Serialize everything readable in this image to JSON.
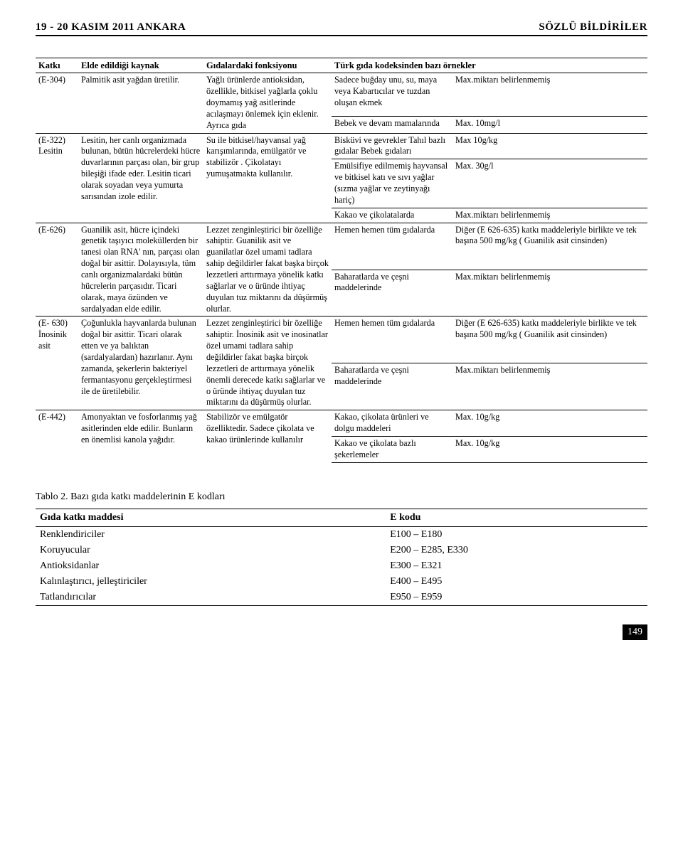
{
  "header": {
    "left": "19 - 20 KASIM 2011 ANKARA",
    "right": "SÖZLÜ BİLDİRİLER"
  },
  "table1": {
    "head": [
      "Katkı",
      "Elde edildiği kaynak",
      "Gıdalardaki fonksiyonu",
      "Türk gıda kodeksinden bazı örnekler",
      ""
    ],
    "rows": {
      "e304": {
        "id": "(E-304)",
        "src": "Palmitik asit yağdan üretilir.",
        "func": "Yağlı ürünlerde antioksidan, özellikle, bitkisel yağlarla çoklu doymamış yağ asitlerinde acılaşmayı önlemek için eklenir. Ayrıca gıda",
        "ex1": "Sadece buğday unu, su, maya veya Kabartıcılar ve tuzdan oluşan ekmek",
        "lim1": "Max.miktarı belirlenmemiş",
        "ex2": "Bebek ve devam mamalarında",
        "lim2": "Max. 10mg/l"
      },
      "e322": {
        "id": "(E-322) Lesitin",
        "src": "Lesitin, her canlı organizmada bulunan, bütün hücrelerdeki hücre duvarlarının parçası olan, bir grup bileşiği ifade eder. Lesitin ticari olarak soyadan veya yumurta sarısından izole edilir.",
        "func": "Su ile bitkisel/hayvansal yağ karışımlarında, emülgatör ve stabilizör . Çikolatayı yumuşatmakta kullanılır.",
        "ex1": "Bisküvi ve gevrekler Tahıl bazlı gıdalar Bebek gıdaları",
        "lim1": "Max 10g/kg",
        "ex2": "Emülsifiye edilmemiş hayvansal ve bitkisel katı ve sıvı yağlar (sızma yağlar ve zeytinyağı hariç)",
        "lim2": "Max. 30g/l",
        "ex3": "Kakao ve çikolatalarda",
        "lim3": "Max.miktarı belirlenmemiş"
      },
      "e626": {
        "id": "(E-626)",
        "src": "Guanilik asit, hücre içindeki genetik taşıyıcı moleküllerden bir tanesi olan RNA' nın, parçası olan doğal bir asittir. Dolayısıyla, tüm canlı organizmalardaki bütün hücrelerin parçasıdır. Ticari olarak, maya özünden ve sardalyadan elde edilir.",
        "func": "Lezzet zenginleştirici bir özelliğe sahiptir. Guanilik asit ve guanilatlar özel umami tadlara sahip değildirler fakat başka birçok lezzetleri arttırmaya yönelik katkı sağlarlar ve o üründe ihtiyaç duyulan tuz miktarını da düşürmüş olurlar.",
        "ex1": "Hemen hemen tüm gıdalarda",
        "lim1": "Diğer (E 626-635) katkı maddeleriyle birlikte ve tek başına 500 mg/kg ( Guanilik asit cinsinden)",
        "ex2": "Baharatlarda ve çeşni maddelerinde",
        "lim2": "Max.miktarı belirlenmemiş"
      },
      "e630": {
        "id": "(E- 630) İnosinik asit",
        "src": "Çoğunlukla hayvanlarda bulunan doğal bir asittir. Ticari olarak etten ve ya balıktan (sardalyalardan) hazırlanır. Aynı zamanda, şekerlerin bakteriyel fermantasyonu gerçekleştirmesi ile de üretilebilir.",
        "func": "Lezzet zenginleştirici bir özelliğe sahiptir. İnosinik asit ve inosinatlar özel umami tadlara sahip değildirler fakat başka birçok lezzetleri de arttırmaya yönelik önemli derecede katkı sağlarlar ve o üründe ihtiyaç duyulan tuz miktarını da düşürmüş olurlar.",
        "ex1": "Hemen hemen tüm gıdalarda",
        "lim1": "Diğer (E 626-635) katkı maddeleriyle birlikte ve tek başına 500 mg/kg ( Guanilik asit cinsinden)",
        "ex2": "Baharatlarda ve çeşni maddelerinde",
        "lim2": "Max.miktarı belirlenmemiş"
      },
      "e442": {
        "id": "(E-442)",
        "src": "Amonyaktan ve fosforlanmış yağ asitlerinden elde edilir. Bunların en önemlisi kanola yağıdır.",
        "func": "Stabilizör ve emülgatör özelliktedir. Sadece çikolata ve kakao ürünlerinde kullanılır",
        "ex1": "Kakao, çikolata ürünleri ve dolgu maddeleri",
        "lim1": "Max. 10g/kg",
        "ex2": "Kakao ve çikolata bazlı şekerlemeler",
        "lim2": "Max. 10g/kg"
      }
    }
  },
  "table2": {
    "title": "Tablo 2. Bazı gıda katkı maddelerinin E kodları",
    "head": [
      "Gıda katkı maddesi",
      "E kodu"
    ],
    "rows": [
      [
        "Renklendiriciler",
        "E100 – E180"
      ],
      [
        "Koruyucular",
        "E200 – E285, E330"
      ],
      [
        "Antioksidanlar",
        "E300 – E321"
      ],
      [
        "Kalınlaştırıcı, jelleştiriciler",
        "E400 – E495"
      ],
      [
        "Tatlandırıcılar",
        "E950 – E959"
      ]
    ]
  },
  "pagenum": "149"
}
